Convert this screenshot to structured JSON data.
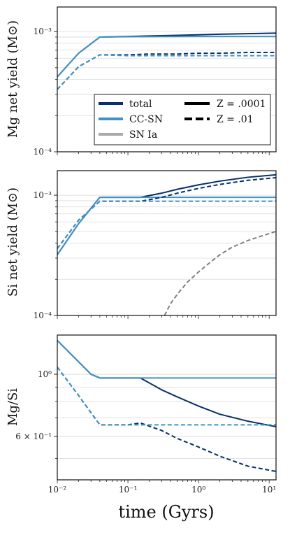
{
  "figure": {
    "xlabel": "time (Gyrs)"
  },
  "chart_data": [
    {
      "type": "line",
      "panel": "top",
      "ylabel": "Mg net yield (M⊙)",
      "xscale": "log",
      "yscale": "log",
      "xlim": [
        0.01,
        12.5
      ],
      "ylim": [
        0.0001,
        0.0016
      ],
      "x_ticks": [
        0.01,
        0.1,
        1,
        10
      ],
      "x_tick_labels": [
        "10⁻²",
        "10⁻¹",
        "10⁰",
        "10¹"
      ],
      "y_ticks": [
        0.0001,
        0.001
      ],
      "y_tick_labels": [
        "10⁻⁴",
        "10⁻³"
      ],
      "grid": true,
      "legend_position": "lower-right",
      "legend": {
        "colors": [
          {
            "label": "total",
            "color": "#08306b"
          },
          {
            "label": "CC-SN",
            "color": "#4292c6"
          },
          {
            "label": "SN Ia",
            "color": "#aaaaaa"
          }
        ],
        "styles": [
          {
            "label": "Z = .0001",
            "dash": "solid"
          },
          {
            "label": "Z = .01",
            "dash": "dashed"
          }
        ]
      },
      "series": [
        {
          "source": "total",
          "metallicity": "Z = .0001",
          "color": "#08306b",
          "dash": "solid",
          "x": [
            0.01,
            0.02,
            0.04,
            0.1,
            0.2,
            0.5,
            1,
            2,
            5,
            12.5
          ],
          "y": [
            0.00042,
            0.00066,
            0.0009,
            0.00091,
            0.00092,
            0.00093,
            0.00094,
            0.00095,
            0.00096,
            0.00097
          ]
        },
        {
          "source": "CC-SN",
          "metallicity": "Z = .0001",
          "color": "#4292c6",
          "dash": "solid",
          "x": [
            0.01,
            0.02,
            0.04,
            0.1,
            1,
            12.5
          ],
          "y": [
            0.00042,
            0.00066,
            0.0009,
            0.000905,
            0.00091,
            0.00091
          ]
        },
        {
          "source": "total",
          "metallicity": "Z = .01",
          "color": "#08306b",
          "dash": "dashed",
          "x": [
            0.01,
            0.02,
            0.04,
            0.1,
            0.2,
            0.5,
            1,
            2,
            5,
            12.5
          ],
          "y": [
            0.00033,
            0.00051,
            0.00064,
            0.00064,
            0.00065,
            0.00065,
            0.00066,
            0.00066,
            0.00067,
            0.00067
          ]
        },
        {
          "source": "CC-SN",
          "metallicity": "Z = .01",
          "color": "#4292c6",
          "dash": "dashed",
          "x": [
            0.01,
            0.02,
            0.04,
            0.1,
            1,
            12.5
          ],
          "y": [
            0.00033,
            0.00051,
            0.00064,
            0.00063,
            0.00063,
            0.00063
          ]
        }
      ]
    },
    {
      "type": "line",
      "panel": "middle",
      "ylabel": "Si net yield (M⊙)",
      "xscale": "log",
      "yscale": "log",
      "xlim": [
        0.01,
        12.5
      ],
      "ylim": [
        0.0001,
        0.0016
      ],
      "x_ticks": [
        0.01,
        0.1,
        1,
        10
      ],
      "y_ticks": [
        0.0001,
        0.001
      ],
      "y_tick_labels": [
        "10⁻⁴",
        "10⁻³"
      ],
      "grid": true,
      "series": [
        {
          "source": "total",
          "metallicity": "Z = .0001",
          "color": "#08306b",
          "dash": "solid",
          "x": [
            0.01,
            0.02,
            0.04,
            0.1,
            0.15,
            0.3,
            0.5,
            1,
            2,
            5,
            12.5
          ],
          "y": [
            0.00032,
            0.00058,
            0.00096,
            0.00096,
            0.00096,
            0.00104,
            0.00112,
            0.00122,
            0.00131,
            0.00141,
            0.00148
          ]
        },
        {
          "source": "CC-SN",
          "metallicity": "Z = .0001",
          "color": "#4292c6",
          "dash": "solid",
          "x": [
            0.01,
            0.02,
            0.04,
            0.1,
            1,
            12.5
          ],
          "y": [
            0.00032,
            0.00058,
            0.00096,
            0.00096,
            0.00096,
            0.00096
          ]
        },
        {
          "source": "total",
          "metallicity": "Z = .01",
          "color": "#08306b",
          "dash": "dashed",
          "x": [
            0.01,
            0.02,
            0.04,
            0.1,
            0.15,
            0.3,
            0.5,
            1,
            2,
            5,
            12.5
          ],
          "y": [
            0.00036,
            0.00062,
            0.00089,
            0.00089,
            0.00089,
            0.00096,
            0.00104,
            0.00114,
            0.00123,
            0.00133,
            0.0014
          ]
        },
        {
          "source": "CC-SN",
          "metallicity": "Z = .01",
          "color": "#4292c6",
          "dash": "dashed",
          "x": [
            0.01,
            0.02,
            0.04,
            0.1,
            1,
            12.5
          ],
          "y": [
            0.00036,
            0.00062,
            0.00089,
            0.00089,
            0.00089,
            0.00089
          ]
        },
        {
          "source": "SN Ia",
          "metallicity": "Z = .01",
          "color": "#808080",
          "dash": "dashed",
          "x": [
            0.33,
            0.4,
            0.5,
            0.7,
            1,
            1.5,
            2,
            3,
            5,
            8,
            12.5
          ],
          "y": [
            0.0001,
            0.000125,
            0.00015,
            0.00019,
            0.00023,
            0.00028,
            0.00032,
            0.00037,
            0.00042,
            0.00046,
            0.0005
          ]
        }
      ]
    },
    {
      "type": "line",
      "panel": "bottom",
      "ylabel": "Mg/Si",
      "xscale": "log",
      "yscale": "log",
      "xlim": [
        0.01,
        12.5
      ],
      "ylim": [
        0.42,
        1.38
      ],
      "x_ticks": [
        0.01,
        0.1,
        1,
        10
      ],
      "x_tick_labels": [
        "10⁻²",
        "10⁻¹",
        "10⁰",
        "10¹"
      ],
      "y_ticks": [
        0.6,
        1.0
      ],
      "y_tick_labels": [
        "6 × 10⁻¹",
        "10⁰"
      ],
      "grid": true,
      "series": [
        {
          "source": "total",
          "metallicity": "Z = .0001",
          "color": "#08306b",
          "dash": "solid",
          "x": [
            0.01,
            0.03,
            0.04,
            0.1,
            0.15,
            0.3,
            0.5,
            1,
            2,
            5,
            12.5
          ],
          "y": [
            1.32,
            1.0,
            0.97,
            0.97,
            0.97,
            0.88,
            0.83,
            0.77,
            0.72,
            0.68,
            0.65
          ]
        },
        {
          "source": "CC-SN",
          "metallicity": "Z = .0001",
          "color": "#4292c6",
          "dash": "solid",
          "x": [
            0.01,
            0.03,
            0.04,
            0.1,
            1,
            12.5
          ],
          "y": [
            1.32,
            1.0,
            0.97,
            0.97,
            0.97,
            0.97
          ]
        },
        {
          "source": "total",
          "metallicity": "Z = .01",
          "color": "#08306b",
          "dash": "dashed",
          "x": [
            0.01,
            0.02,
            0.04,
            0.1,
            0.15,
            0.3,
            0.5,
            1,
            2,
            5,
            12.5
          ],
          "y": [
            1.06,
            0.84,
            0.66,
            0.66,
            0.67,
            0.63,
            0.59,
            0.55,
            0.51,
            0.47,
            0.45
          ]
        },
        {
          "source": "CC-SN",
          "metallicity": "Z = .01",
          "color": "#4292c6",
          "dash": "dashed",
          "x": [
            0.01,
            0.02,
            0.04,
            0.1,
            1,
            12.5
          ],
          "y": [
            1.06,
            0.84,
            0.66,
            0.66,
            0.66,
            0.66
          ]
        }
      ]
    }
  ]
}
